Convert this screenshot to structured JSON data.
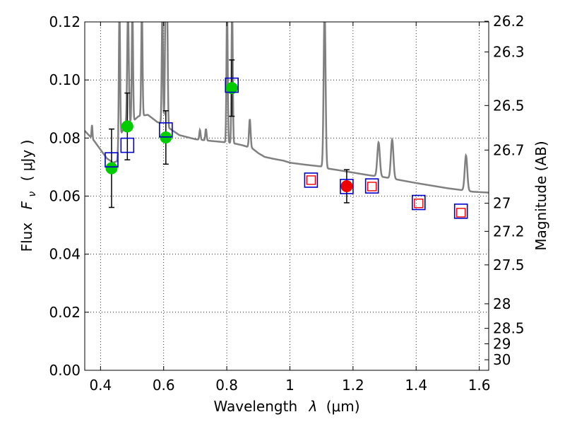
{
  "chart_data": {
    "type": "scatter",
    "xlabel_prefix": "Wavelength",
    "xlabel_symbol": "λ",
    "xlabel_unit": "(μm)",
    "ylabel_prefix": "Flux",
    "ylabel_symbol": "F",
    "ylabel_subscript": "ν",
    "ylabel_unit": "( μJy )",
    "y2label": "Magnitude (AB)",
    "xlim": [
      0.35,
      1.63
    ],
    "ylim": [
      0.0,
      0.12
    ],
    "grid": true,
    "x_ticks": [
      {
        "value": 0.4,
        "label": "0.4"
      },
      {
        "value": 0.6,
        "label": "0.6"
      },
      {
        "value": 0.8,
        "label": "0.8"
      },
      {
        "value": 1.0,
        "label": "1"
      },
      {
        "value": 1.2,
        "label": "1.2"
      },
      {
        "value": 1.4,
        "label": "1.4"
      },
      {
        "value": 1.6,
        "label": "1.6"
      }
    ],
    "y_ticks": [
      {
        "value": 0.0,
        "label": "0.00"
      },
      {
        "value": 0.02,
        "label": "0.02"
      },
      {
        "value": 0.04,
        "label": "0.04"
      },
      {
        "value": 0.06,
        "label": "0.06"
      },
      {
        "value": 0.08,
        "label": "0.08"
      },
      {
        "value": 0.1,
        "label": "0.10"
      },
      {
        "value": 0.12,
        "label": "0.12"
      }
    ],
    "mag_ticks": [
      {
        "mag": 26.2,
        "label": "26.2"
      },
      {
        "mag": 26.3,
        "label": "26.3"
      },
      {
        "mag": 26.5,
        "label": "26.5"
      },
      {
        "mag": 26.7,
        "label": "26.7"
      },
      {
        "mag": 27.0,
        "label": "27"
      },
      {
        "mag": 27.2,
        "label": "27.2"
      },
      {
        "mag": 27.5,
        "label": "27.5"
      },
      {
        "mag": 28.0,
        "label": "28"
      },
      {
        "mag": 28.5,
        "label": "28.5"
      },
      {
        "mag": 29.0,
        "label": "29"
      },
      {
        "mag": 30.0,
        "label": "30"
      }
    ],
    "model_spectrum": {
      "color": "#808080",
      "continuum": [
        [
          0.35,
          0.0825
        ],
        [
          0.38,
          0.079
        ],
        [
          0.4,
          0.076
        ],
        [
          0.42,
          0.073
        ],
        [
          0.44,
          0.0715
        ],
        [
          0.452,
          0.072
        ],
        [
          0.465,
          0.0815
        ],
        [
          0.48,
          0.0845
        ],
        [
          0.5,
          0.0855
        ],
        [
          0.52,
          0.0875
        ],
        [
          0.55,
          0.088
        ],
        [
          0.58,
          0.0855
        ],
        [
          0.6,
          0.0848
        ],
        [
          0.62,
          0.0832
        ],
        [
          0.65,
          0.081
        ],
        [
          0.7,
          0.0796
        ],
        [
          0.75,
          0.079
        ],
        [
          0.78,
          0.0787
        ],
        [
          0.8,
          0.0785
        ],
        [
          0.83,
          0.078
        ],
        [
          0.85,
          0.0775
        ],
        [
          0.88,
          0.0765
        ],
        [
          0.9,
          0.0748
        ],
        [
          0.92,
          0.0735
        ],
        [
          0.95,
          0.0728
        ],
        [
          0.98,
          0.0722
        ],
        [
          1.0,
          0.0715
        ],
        [
          1.05,
          0.0708
        ],
        [
          1.1,
          0.0702
        ],
        [
          1.12,
          0.0695
        ],
        [
          1.15,
          0.069
        ],
        [
          1.2,
          0.0681
        ],
        [
          1.25,
          0.0672
        ],
        [
          1.3,
          0.0665
        ],
        [
          1.35,
          0.0655
        ],
        [
          1.4,
          0.0645
        ],
        [
          1.45,
          0.0636
        ],
        [
          1.5,
          0.0627
        ],
        [
          1.55,
          0.062
        ],
        [
          1.58,
          0.0615
        ],
        [
          1.63,
          0.0612
        ]
      ],
      "lines": [
        {
          "x": 0.373,
          "peak": 0.0845,
          "width": 0.003
        },
        {
          "x": 0.46,
          "peak": 0.125,
          "width": 0.004
        },
        {
          "x": 0.487,
          "peak": 0.124,
          "width": 0.005
        },
        {
          "x": 0.501,
          "peak": 0.125,
          "width": 0.004
        },
        {
          "x": 0.531,
          "peak": 0.125,
          "width": 0.004
        },
        {
          "x": 0.596,
          "peak": 0.125,
          "width": 0.004
        },
        {
          "x": 0.606,
          "peak": 0.125,
          "width": 0.004
        },
        {
          "x": 0.611,
          "peak": 0.125,
          "width": 0.004
        },
        {
          "x": 0.715,
          "peak": 0.0828,
          "width": 0.004
        },
        {
          "x": 0.734,
          "peak": 0.0832,
          "width": 0.004
        },
        {
          "x": 0.801,
          "peak": 0.125,
          "width": 0.004
        },
        {
          "x": 0.817,
          "peak": 0.125,
          "width": 0.004
        },
        {
          "x": 0.873,
          "peak": 0.0865,
          "width": 0.005
        },
        {
          "x": 1.11,
          "peak": 0.125,
          "width": 0.006
        },
        {
          "x": 1.281,
          "peak": 0.0785,
          "width": 0.008
        },
        {
          "x": 1.324,
          "peak": 0.0795,
          "width": 0.008
        },
        {
          "x": 1.558,
          "peak": 0.074,
          "width": 0.008
        }
      ]
    },
    "series": [
      {
        "name": "observed-green",
        "marker": "circle",
        "color": "#00cc00",
        "points": [
          {
            "x": 0.435,
            "y": 0.0696,
            "err": 0.0135
          },
          {
            "x": 0.485,
            "y": 0.084,
            "err": 0.0115
          },
          {
            "x": 0.607,
            "y": 0.0802,
            "err": 0.0092
          },
          {
            "x": 0.816,
            "y": 0.0972,
            "err": 0.0097
          }
        ]
      },
      {
        "name": "observed-red",
        "marker": "circle",
        "color": "#ee0000",
        "points": [
          {
            "x": 1.18,
            "y": 0.0634,
            "err": 0.0057
          }
        ]
      },
      {
        "name": "model-blue-squares",
        "marker": "square",
        "color": "#0000cc",
        "points": [
          {
            "x": 0.435,
            "y": 0.0725
          },
          {
            "x": 0.485,
            "y": 0.0775
          },
          {
            "x": 0.607,
            "y": 0.0828
          },
          {
            "x": 0.816,
            "y": 0.0982
          },
          {
            "x": 1.067,
            "y": 0.0655
          },
          {
            "x": 1.18,
            "y": 0.0633
          },
          {
            "x": 1.26,
            "y": 0.0635
          },
          {
            "x": 1.408,
            "y": 0.0578
          },
          {
            "x": 1.542,
            "y": 0.0548
          }
        ]
      },
      {
        "name": "model-red-squares",
        "marker": "square-small",
        "color": "#ee0000",
        "points": [
          {
            "x": 1.067,
            "y": 0.0655
          },
          {
            "x": 1.26,
            "y": 0.0633
          },
          {
            "x": 1.408,
            "y": 0.0575
          },
          {
            "x": 1.542,
            "y": 0.0543
          }
        ]
      }
    ]
  }
}
